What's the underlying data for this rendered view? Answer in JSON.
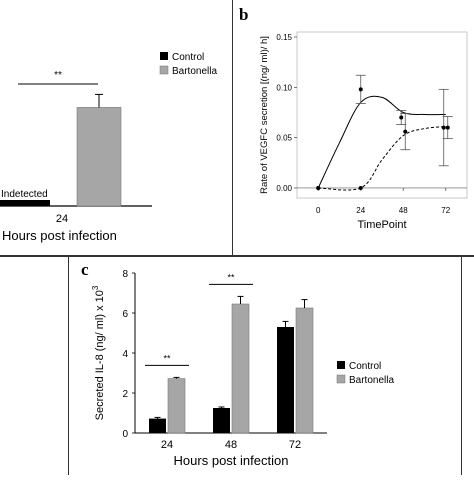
{
  "panels": {
    "a": {
      "letter": "",
      "chart_data": {
        "type": "bar",
        "categories": [
          "24"
        ],
        "series": [
          {
            "name": "Control",
            "values": [
              0
            ],
            "color": "#000000",
            "note_label": "Indetected"
          },
          {
            "name": "Bartonella",
            "values": [
              0.53
            ],
            "errors": [
              0.07
            ],
            "color": "#a6a6a6"
          }
        ],
        "xlabel": "Hours post infection",
        "ylabel": "",
        "ylim": [
          0,
          1
        ],
        "legend": "top-right",
        "significance": [
          {
            "category": "24",
            "label": "**"
          }
        ]
      }
    },
    "b": {
      "letter": "b",
      "chart_data": {
        "type": "line",
        "x": [
          0,
          24,
          48,
          72
        ],
        "xlabel": "TimePoint",
        "ylabel": "Rate of VEGFC secretion [(ng/ ml)/ h]",
        "yticks": [
          "0.00",
          "0.05",
          "0.10",
          "0.15"
        ],
        "ylim": [
          -0.01,
          0.155
        ],
        "xlim": [
          -12,
          84
        ],
        "series": [
          {
            "name": "",
            "style": "solid",
            "values": [
              0.0,
              0.098,
              0.07,
              0.06
            ],
            "errors": [
              0,
              0.014,
              0.007,
              0.038
            ]
          },
          {
            "name": "",
            "style": "dashed",
            "values": [
              0.0,
              0.0,
              0.056,
              0.06
            ],
            "errors": [
              0,
              0,
              0.018,
              0.011
            ]
          }
        ]
      }
    },
    "c": {
      "letter": "c",
      "chart_data": {
        "type": "bar",
        "categories": [
          "24",
          "48",
          "72"
        ],
        "series": [
          {
            "name": "Control",
            "values": [
              0.72,
              1.25,
              5.3
            ],
            "errors": [
              0.06,
              0.05,
              0.28
            ],
            "color": "#000000"
          },
          {
            "name": "Bartonella",
            "values": [
              2.72,
              6.45,
              6.25
            ],
            "errors": [
              0.06,
              0.38,
              0.42
            ],
            "color": "#a6a6a6"
          }
        ],
        "xlabel": "Hours post infection",
        "ylabel": "Secreted IL-8 (ng/ ml) x 10",
        "ylabel_exp": "3",
        "yticks": [
          "0",
          "2",
          "4",
          "6",
          "8"
        ],
        "ylim": [
          0,
          8
        ],
        "legend": "right",
        "significance": [
          {
            "category": "24",
            "label": "**"
          },
          {
            "category": "48",
            "label": "**"
          }
        ]
      }
    }
  }
}
